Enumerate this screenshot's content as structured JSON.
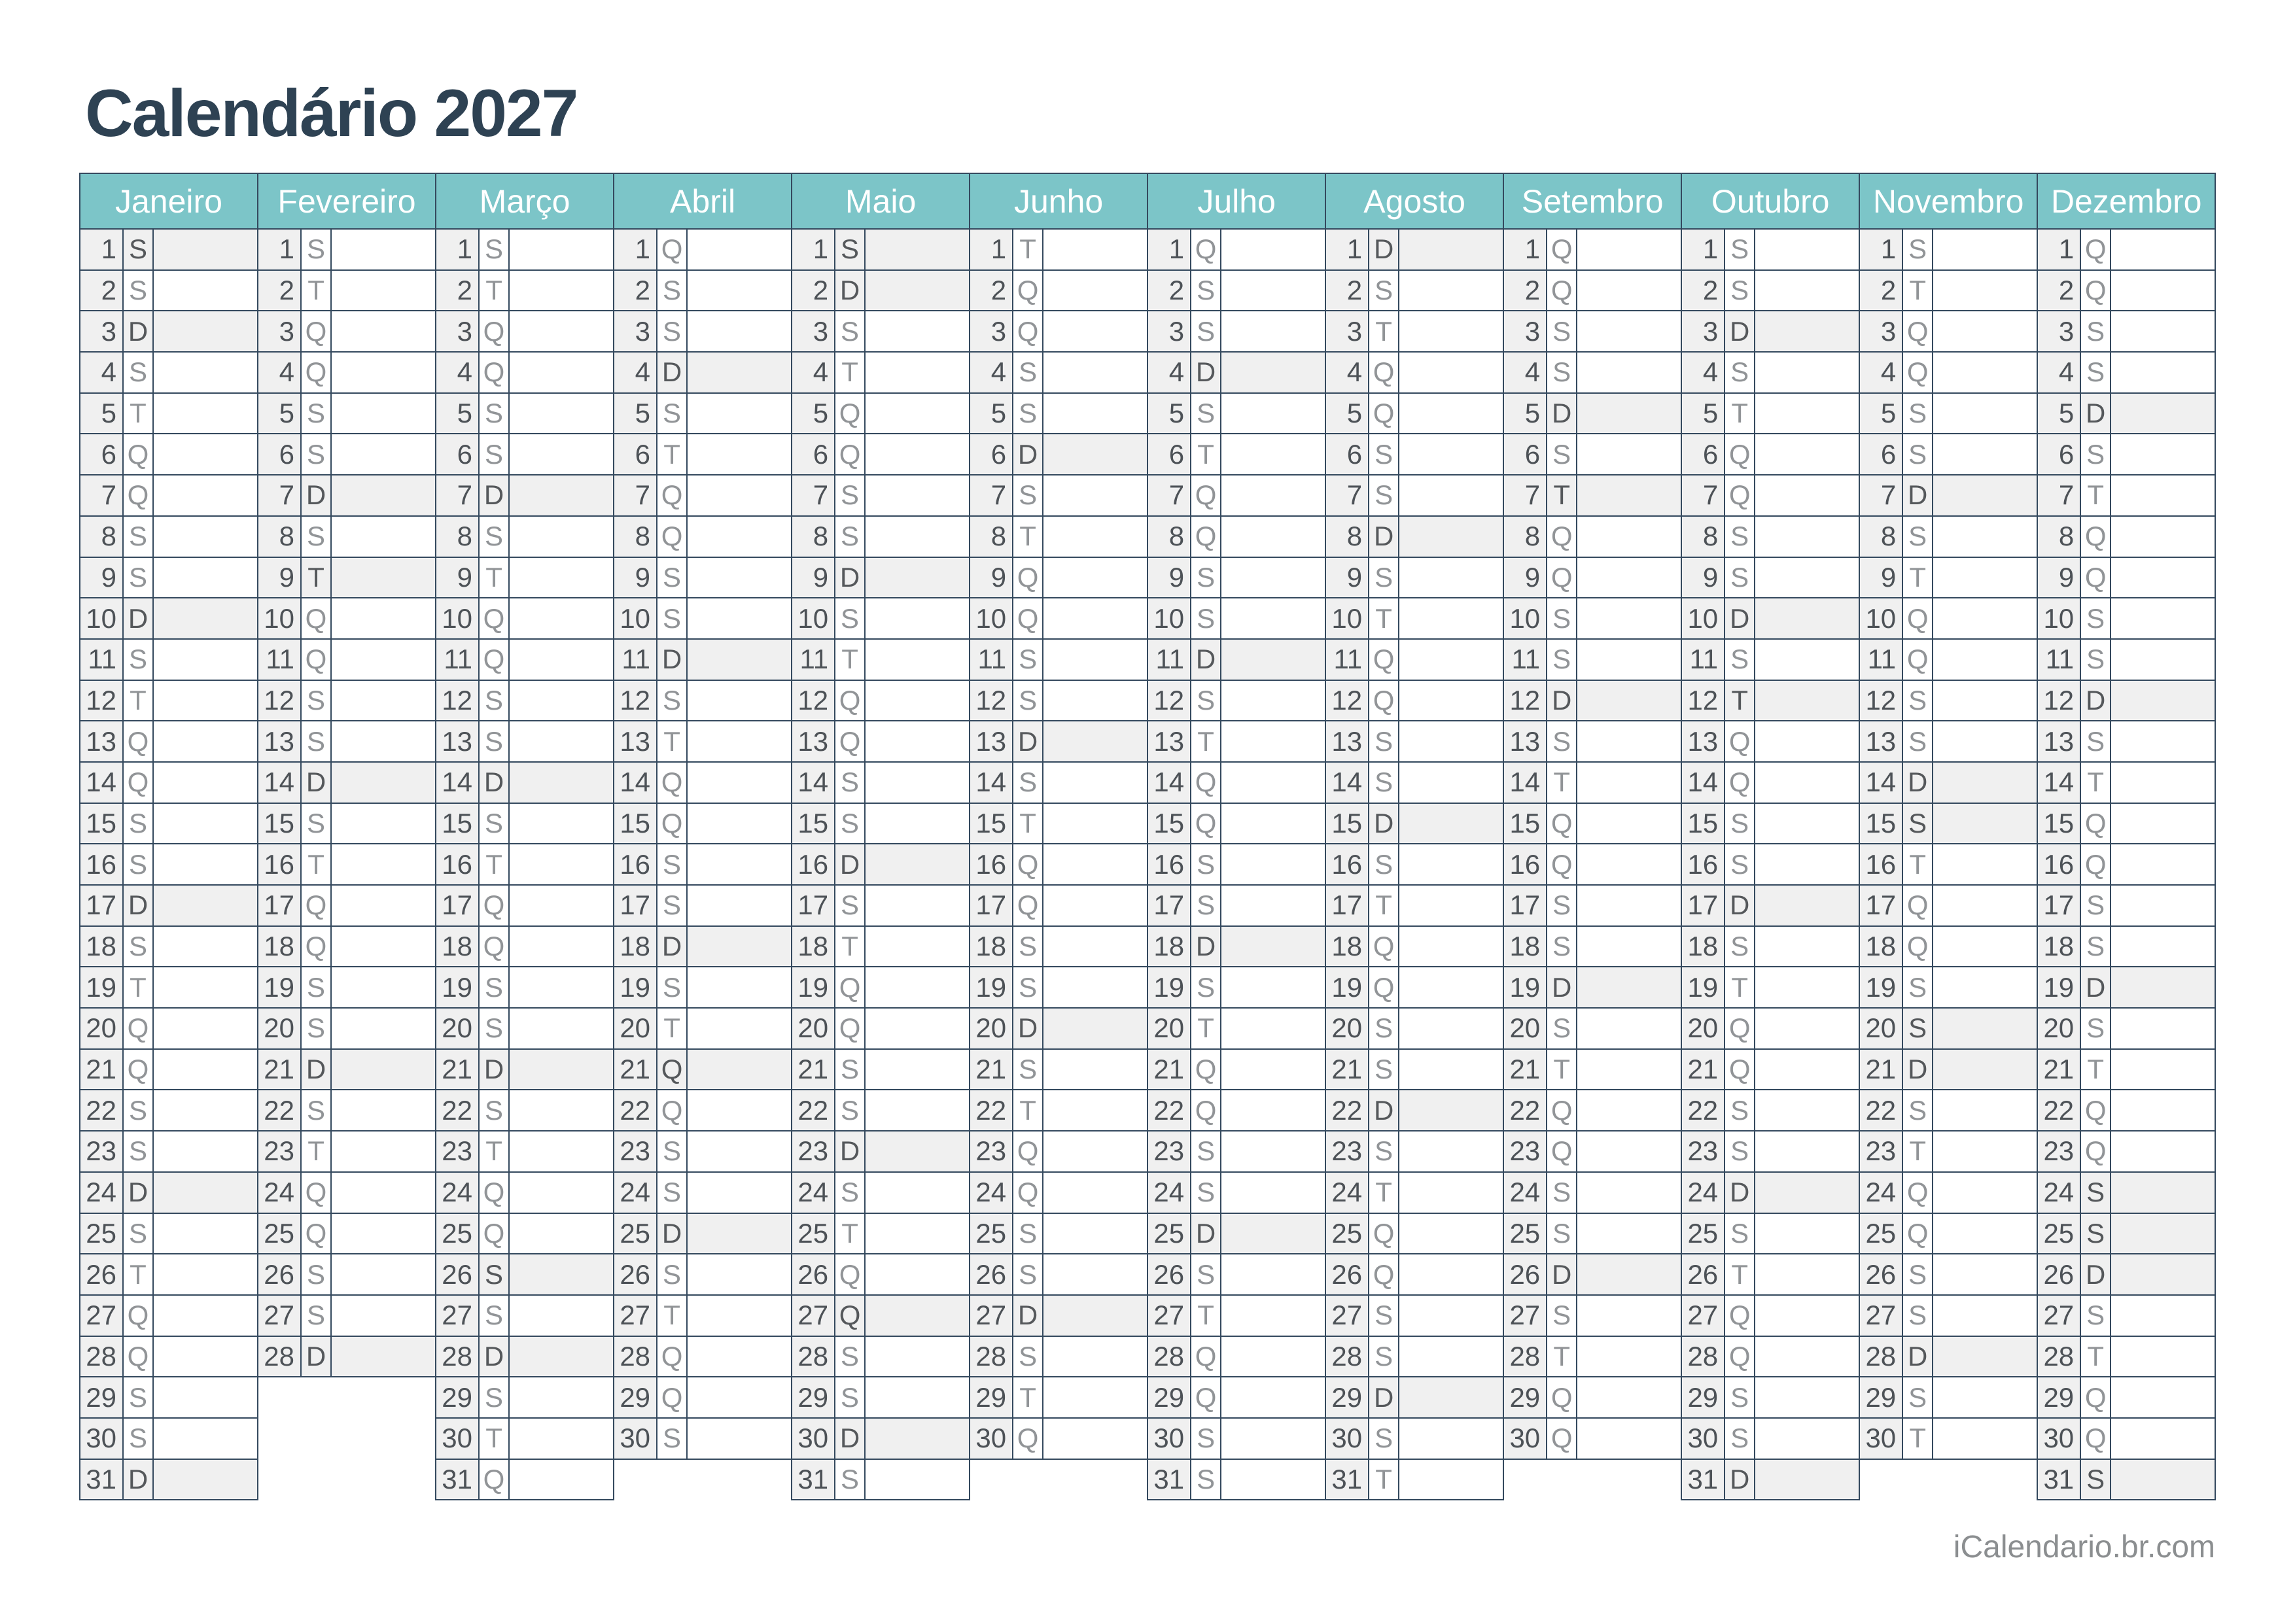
{
  "page": {
    "title": "Calendário 2027",
    "footer": "iCalendario.br.com"
  },
  "colors": {
    "header_bg": "#7cc5c8",
    "header_text": "#ffffff",
    "border": "#34495e",
    "cell_gray": "#f0f0f0",
    "title_text": "#2e4253",
    "day_number_text": "#4d5257",
    "day_letter_text": "#919497",
    "day_letter_marked_text": "#55585b",
    "footer_text": "#8b8e90"
  },
  "months": [
    {
      "name": "Janeiro",
      "days": 31,
      "letters": [
        "S",
        "S",
        "D",
        "S",
        "T",
        "Q",
        "Q",
        "S",
        "S",
        "D",
        "S",
        "T",
        "Q",
        "Q",
        "S",
        "S",
        "D",
        "S",
        "T",
        "Q",
        "Q",
        "S",
        "S",
        "D",
        "S",
        "T",
        "Q",
        "Q",
        "S",
        "S",
        "D"
      ],
      "marked": [
        1,
        3,
        10,
        17,
        24,
        31
      ]
    },
    {
      "name": "Fevereiro",
      "days": 28,
      "letters": [
        "S",
        "T",
        "Q",
        "Q",
        "S",
        "S",
        "D",
        "S",
        "T",
        "Q",
        "Q",
        "S",
        "S",
        "D",
        "S",
        "T",
        "Q",
        "Q",
        "S",
        "S",
        "D",
        "S",
        "T",
        "Q",
        "Q",
        "S",
        "S",
        "D"
      ],
      "marked": [
        7,
        9,
        14,
        21,
        28
      ]
    },
    {
      "name": "Março",
      "days": 31,
      "letters": [
        "S",
        "T",
        "Q",
        "Q",
        "S",
        "S",
        "D",
        "S",
        "T",
        "Q",
        "Q",
        "S",
        "S",
        "D",
        "S",
        "T",
        "Q",
        "Q",
        "S",
        "S",
        "D",
        "S",
        "T",
        "Q",
        "Q",
        "S",
        "S",
        "D",
        "S",
        "T",
        "Q"
      ],
      "marked": [
        7,
        14,
        21,
        26,
        28
      ]
    },
    {
      "name": "Abril",
      "days": 30,
      "letters": [
        "Q",
        "S",
        "S",
        "D",
        "S",
        "T",
        "Q",
        "Q",
        "S",
        "S",
        "D",
        "S",
        "T",
        "Q",
        "Q",
        "S",
        "S",
        "D",
        "S",
        "T",
        "Q",
        "Q",
        "S",
        "S",
        "D",
        "S",
        "T",
        "Q",
        "Q",
        "S"
      ],
      "marked": [
        4,
        11,
        18,
        21,
        25
      ]
    },
    {
      "name": "Maio",
      "days": 31,
      "letters": [
        "S",
        "D",
        "S",
        "T",
        "Q",
        "Q",
        "S",
        "S",
        "D",
        "S",
        "T",
        "Q",
        "Q",
        "S",
        "S",
        "D",
        "S",
        "T",
        "Q",
        "Q",
        "S",
        "S",
        "D",
        "S",
        "T",
        "Q",
        "Q",
        "S",
        "S",
        "D",
        "S"
      ],
      "marked": [
        1,
        2,
        9,
        16,
        23,
        27,
        30
      ]
    },
    {
      "name": "Junho",
      "days": 30,
      "letters": [
        "T",
        "Q",
        "Q",
        "S",
        "S",
        "D",
        "S",
        "T",
        "Q",
        "Q",
        "S",
        "S",
        "D",
        "S",
        "T",
        "Q",
        "Q",
        "S",
        "S",
        "D",
        "S",
        "T",
        "Q",
        "Q",
        "S",
        "S",
        "D",
        "S",
        "T",
        "Q"
      ],
      "marked": [
        6,
        13,
        20,
        27
      ]
    },
    {
      "name": "Julho",
      "days": 31,
      "letters": [
        "Q",
        "S",
        "S",
        "D",
        "S",
        "T",
        "Q",
        "Q",
        "S",
        "S",
        "D",
        "S",
        "T",
        "Q",
        "Q",
        "S",
        "S",
        "D",
        "S",
        "T",
        "Q",
        "Q",
        "S",
        "S",
        "D",
        "S",
        "T",
        "Q",
        "Q",
        "S",
        "S"
      ],
      "marked": [
        4,
        11,
        18,
        25
      ]
    },
    {
      "name": "Agosto",
      "days": 31,
      "letters": [
        "D",
        "S",
        "T",
        "Q",
        "Q",
        "S",
        "S",
        "D",
        "S",
        "T",
        "Q",
        "Q",
        "S",
        "S",
        "D",
        "S",
        "T",
        "Q",
        "Q",
        "S",
        "S",
        "D",
        "S",
        "T",
        "Q",
        "Q",
        "S",
        "S",
        "D",
        "S",
        "T"
      ],
      "marked": [
        1,
        8,
        15,
        22,
        29
      ]
    },
    {
      "name": "Setembro",
      "days": 30,
      "letters": [
        "Q",
        "Q",
        "S",
        "S",
        "D",
        "S",
        "T",
        "Q",
        "Q",
        "S",
        "S",
        "D",
        "S",
        "T",
        "Q",
        "Q",
        "S",
        "S",
        "D",
        "S",
        "T",
        "Q",
        "Q",
        "S",
        "S",
        "D",
        "S",
        "T",
        "Q",
        "Q"
      ],
      "marked": [
        5,
        7,
        12,
        19,
        26
      ]
    },
    {
      "name": "Outubro",
      "days": 31,
      "letters": [
        "S",
        "S",
        "D",
        "S",
        "T",
        "Q",
        "Q",
        "S",
        "S",
        "D",
        "S",
        "T",
        "Q",
        "Q",
        "S",
        "S",
        "D",
        "S",
        "T",
        "Q",
        "Q",
        "S",
        "S",
        "D",
        "S",
        "T",
        "Q",
        "Q",
        "S",
        "S",
        "D"
      ],
      "marked": [
        3,
        10,
        12,
        17,
        24,
        31
      ]
    },
    {
      "name": "Novembro",
      "days": 30,
      "letters": [
        "S",
        "T",
        "Q",
        "Q",
        "S",
        "S",
        "D",
        "S",
        "T",
        "Q",
        "Q",
        "S",
        "S",
        "D",
        "S",
        "T",
        "Q",
        "Q",
        "S",
        "S",
        "D",
        "S",
        "T",
        "Q",
        "Q",
        "S",
        "S",
        "D",
        "S",
        "T"
      ],
      "marked": [
        7,
        14,
        15,
        20,
        21,
        28
      ]
    },
    {
      "name": "Dezembro",
      "days": 31,
      "letters": [
        "Q",
        "Q",
        "S",
        "S",
        "D",
        "S",
        "T",
        "Q",
        "Q",
        "S",
        "S",
        "D",
        "S",
        "T",
        "Q",
        "Q",
        "S",
        "S",
        "D",
        "S",
        "T",
        "Q",
        "Q",
        "S",
        "S",
        "D",
        "S",
        "T",
        "Q",
        "Q",
        "S"
      ],
      "marked": [
        5,
        12,
        19,
        24,
        25,
        26,
        31
      ]
    }
  ]
}
